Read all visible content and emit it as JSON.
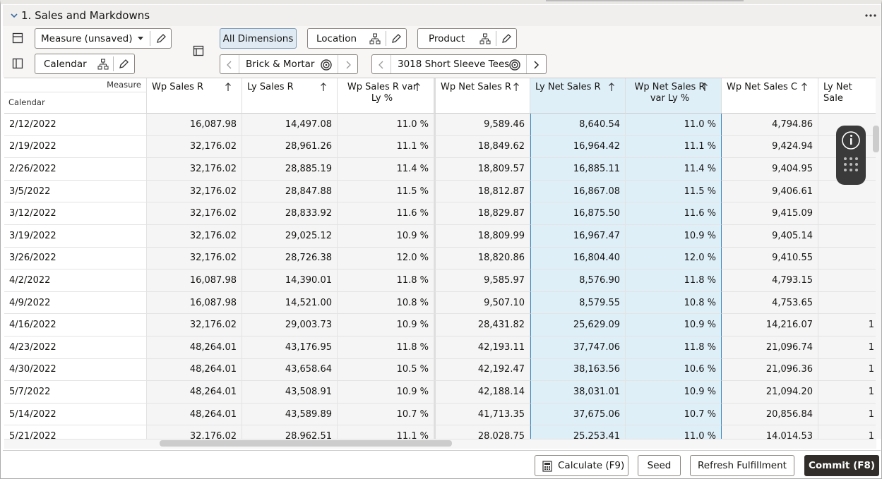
{
  "panel": {
    "title": "1. Sales and Markdowns"
  },
  "toolbar": {
    "measure": "Measure (unsaved)",
    "calendar": "Calendar",
    "all_dimensions": "All Dimensions",
    "location": "Location",
    "product": "Product",
    "location_value": "Brick & Mortar",
    "product_value": "3018 Short Sleeve Tees"
  },
  "table": {
    "corner_top": "Measure",
    "corner_bottom": "Calendar",
    "columns": [
      "Wp Sales R",
      "Ly Sales R",
      "Wp Sales R var Ly %",
      "Wp Net Sales R",
      "Ly Net Sales R",
      "Wp Net Sales R var Ly %",
      "Wp Net Sales C",
      "Ly Net Sale"
    ],
    "rows": [
      [
        "2/12/2022",
        "16,087.98",
        "14,497.08",
        "11.0 %",
        "9,589.46",
        "8,640.54",
        "11.0 %",
        "4,794.86",
        null
      ],
      [
        "2/19/2022",
        "32,176.02",
        "28,961.26",
        "11.1 %",
        "18,849.62",
        "16,964.42",
        "11.1 %",
        "9,424.94",
        null
      ],
      [
        "2/26/2022",
        "32,176.02",
        "28,885.19",
        "11.4 %",
        "18,809.57",
        "16,885.11",
        "11.4 %",
        "9,404.95",
        null
      ],
      [
        "3/5/2022",
        "32,176.02",
        "28,847.88",
        "11.5 %",
        "18,812.87",
        "16,867.08",
        "11.5 %",
        "9,406.61",
        null
      ],
      [
        "3/12/2022",
        "32,176.02",
        "28,833.92",
        "11.6 %",
        "18,829.87",
        "16,875.50",
        "11.6 %",
        "9,415.09",
        null
      ],
      [
        "3/19/2022",
        "32,176.02",
        "29,025.12",
        "10.9 %",
        "18,809.99",
        "16,967.47",
        "10.9 %",
        "9,405.14",
        null
      ],
      [
        "3/26/2022",
        "32,176.02",
        "28,726.38",
        "12.0 %",
        "18,820.86",
        "16,804.40",
        "12.0 %",
        "9,410.55",
        null
      ],
      [
        "4/2/2022",
        "16,087.98",
        "14,390.01",
        "11.8 %",
        "9,585.97",
        "8,576.90",
        "11.8 %",
        "4,793.15",
        null
      ],
      [
        "4/9/2022",
        "16,087.98",
        "14,521.00",
        "10.8 %",
        "9,507.10",
        "8,579.55",
        "10.8 %",
        "4,753.65",
        null
      ],
      [
        "4/16/2022",
        "32,176.02",
        "29,003.73",
        "10.9 %",
        "28,431.82",
        "25,629.09",
        "10.9 %",
        "14,216.07",
        "1"
      ],
      [
        "4/23/2022",
        "48,264.01",
        "43,176.95",
        "11.8 %",
        "42,193.11",
        "37,747.06",
        "11.8 %",
        "21,096.74",
        "1"
      ],
      [
        "4/30/2022",
        "48,264.01",
        "43,658.64",
        "10.5 %",
        "42,192.47",
        "38,163.56",
        "10.6 %",
        "21,096.36",
        "1"
      ],
      [
        "5/7/2022",
        "48,264.01",
        "43,508.91",
        "10.9 %",
        "42,188.14",
        "38,031.01",
        "10.9 %",
        "21,094.20",
        "1"
      ],
      [
        "5/14/2022",
        "48,264.01",
        "43,589.89",
        "10.7 %",
        "41,713.35",
        "37,675.06",
        "10.7 %",
        "20,856.84",
        "1"
      ],
      [
        "5/21/2022",
        "32,176.02",
        "28,962.51",
        "11.1 %",
        "28,028.75",
        "25,253.41",
        "11.0 %",
        "14,014.53",
        "1"
      ]
    ]
  },
  "buttons": [
    "Calculate (F9)",
    "Seed",
    "Refresh Fulfillment",
    "Commit (F8)"
  ]
}
